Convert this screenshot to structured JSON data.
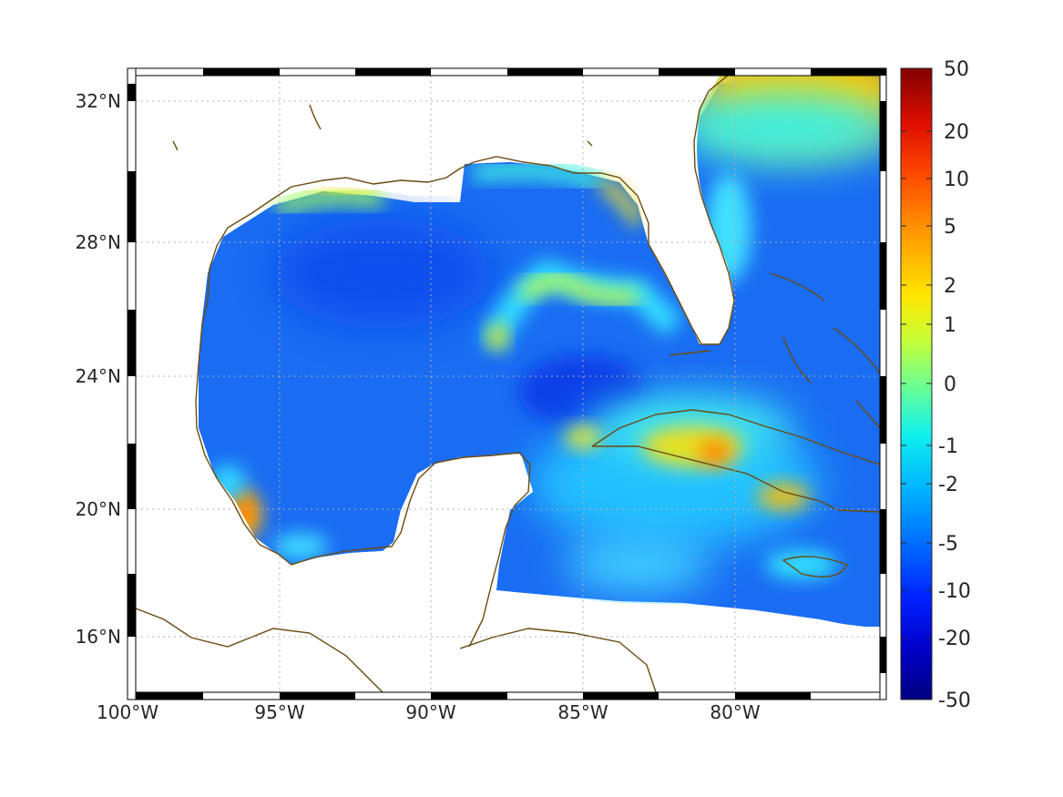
{
  "map": {
    "latitude_ticks": [
      "32°N",
      "28°N",
      "24°N",
      "20°N",
      "16°N"
    ],
    "longitude_ticks": [
      "100°W",
      "95°W",
      "90°W",
      "85°W",
      "80°W"
    ],
    "grid": "dotted",
    "frame": "black-white dashed border",
    "coastline_color": "#6b4a10",
    "land_color": "#ffffff"
  },
  "colorbar": {
    "labels": [
      "50",
      "20",
      "10",
      "5",
      "2",
      "1",
      "0",
      "-1",
      "-2",
      "-5",
      "-10",
      "-20",
      "-50"
    ],
    "colormap": "jet",
    "range": [
      -50,
      50
    ]
  },
  "chart_data": {
    "type": "heatmap",
    "extent": {
      "lon": [
        -100,
        -75
      ],
      "lat": [
        14.3,
        33
      ]
    },
    "colorbar_range": [
      -50,
      50
    ],
    "colorbar_ticks": [
      50,
      20,
      10,
      5,
      2,
      1,
      0,
      -1,
      -2,
      -5,
      -10,
      -20,
      -50
    ]
  }
}
